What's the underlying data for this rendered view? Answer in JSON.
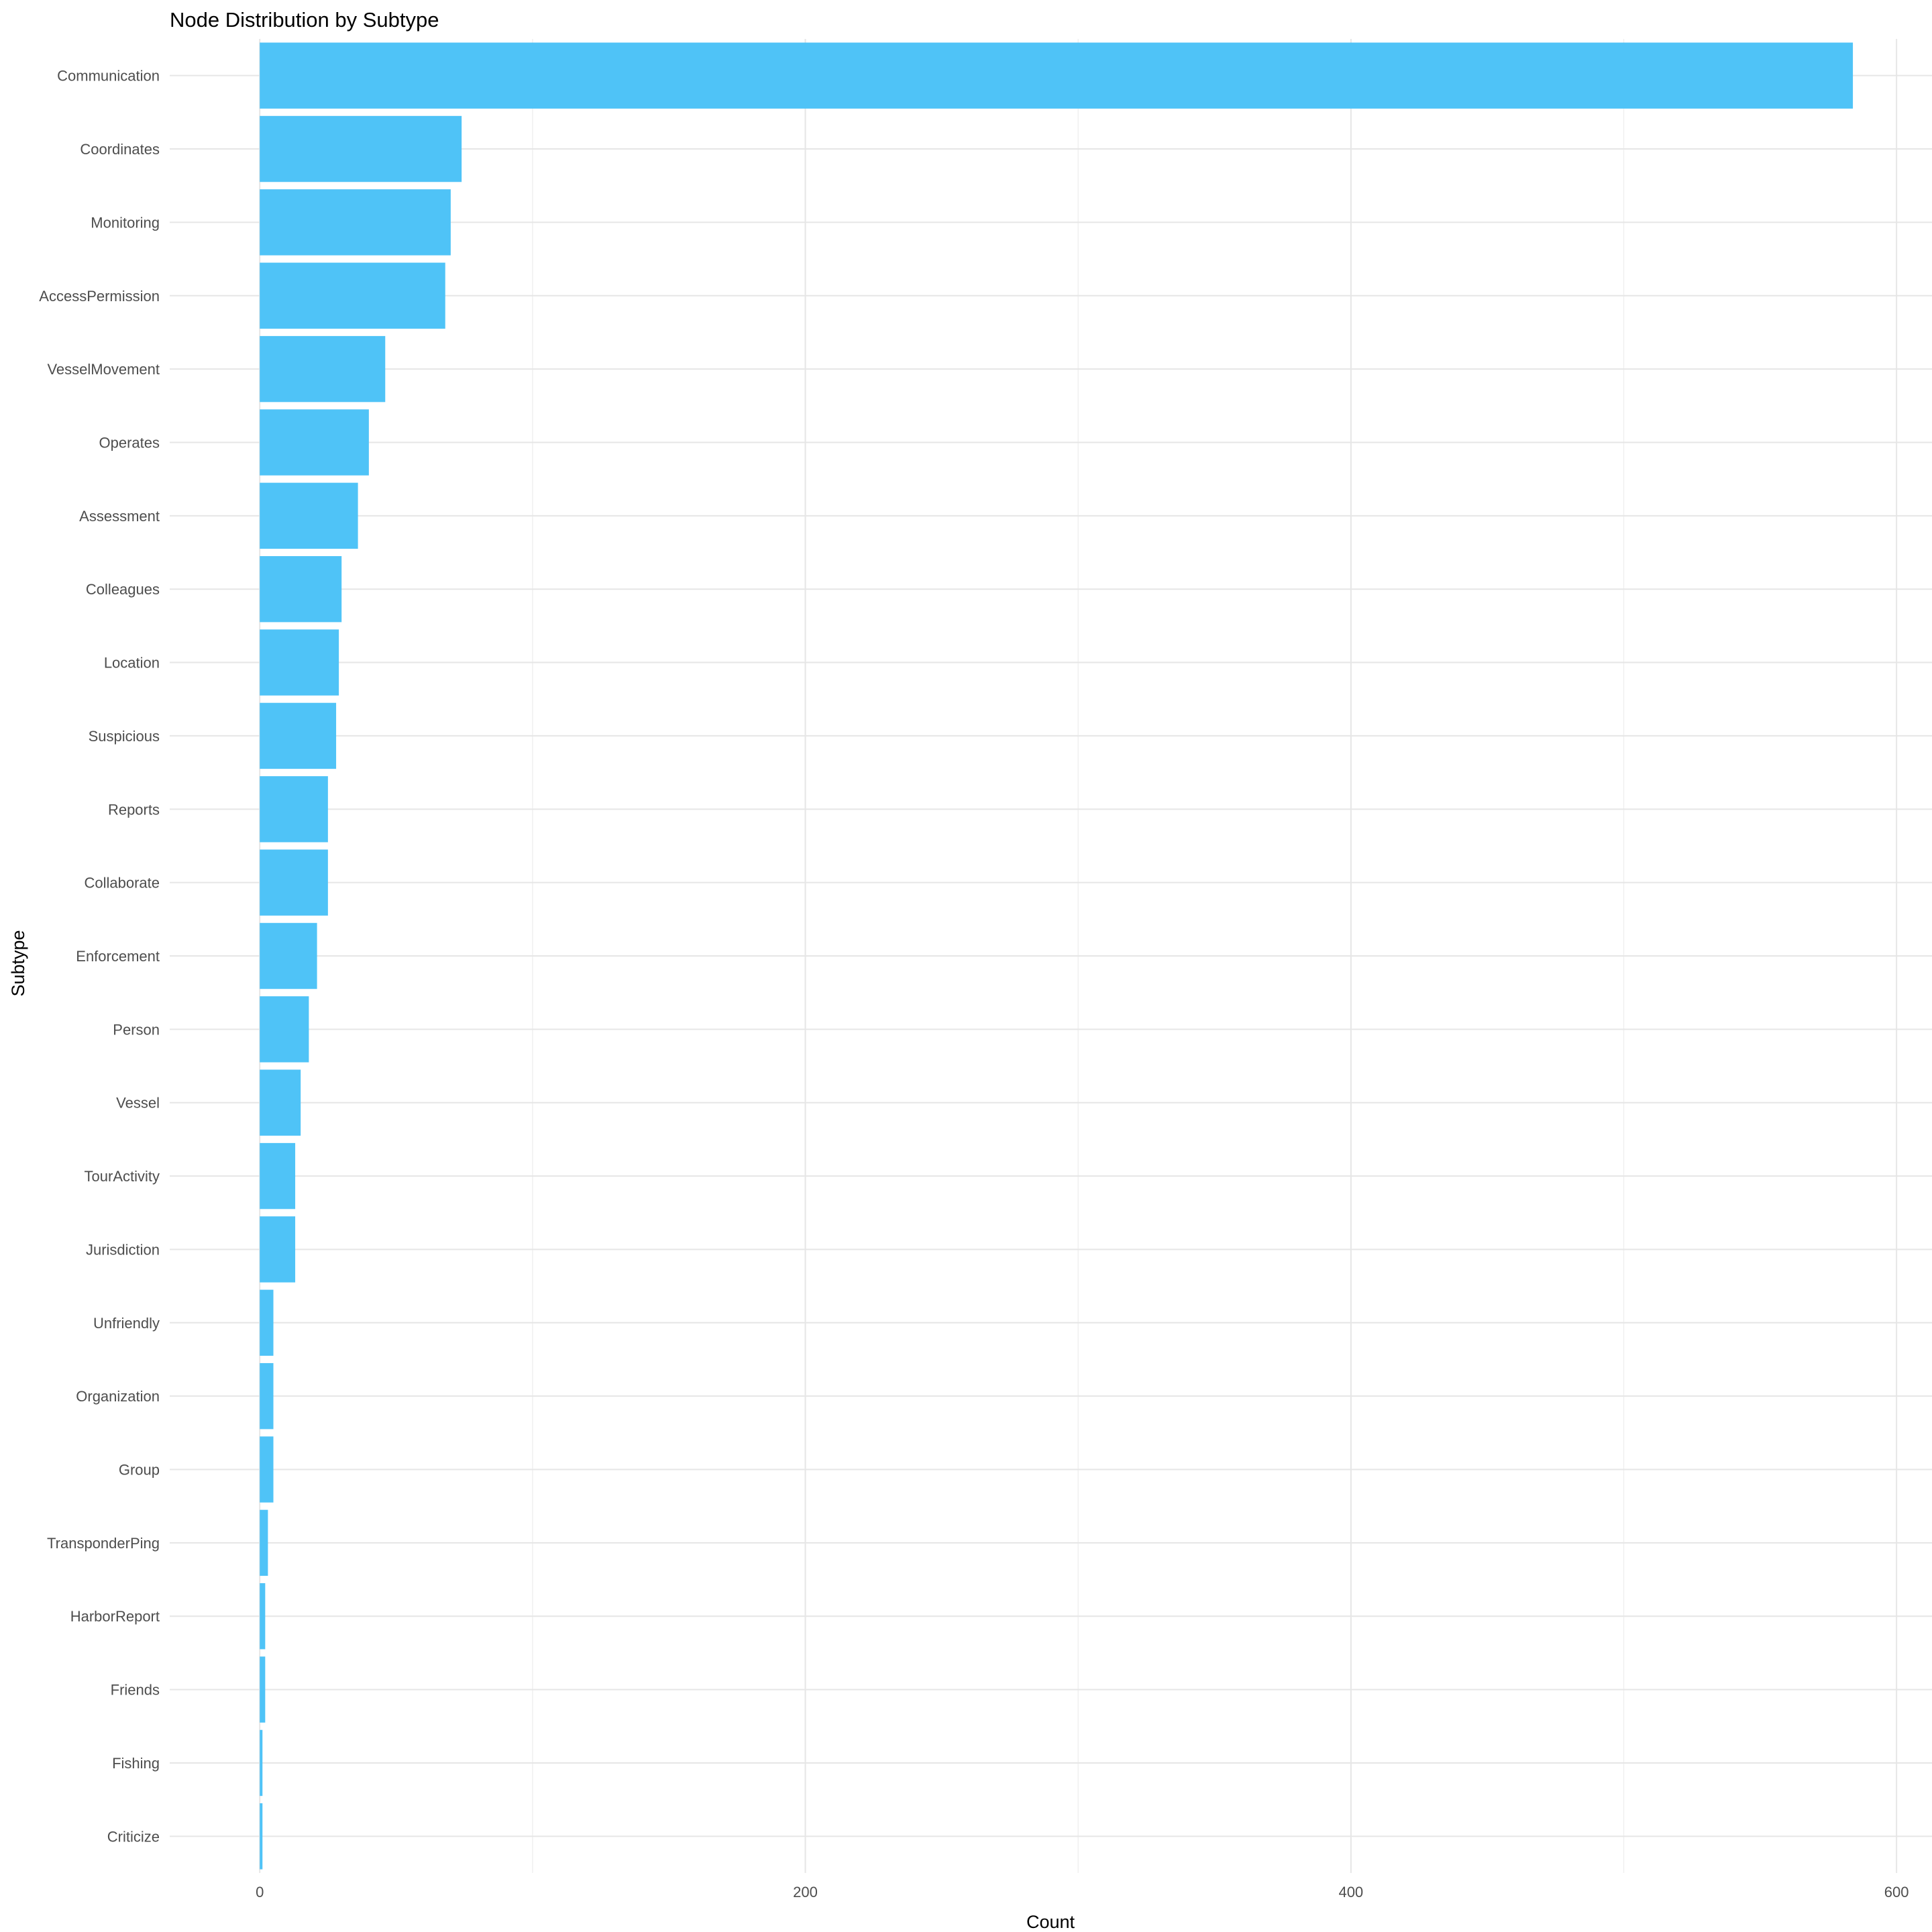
{
  "chart_data": {
    "type": "bar",
    "orientation": "horizontal",
    "title": "Node Distribution by Subtype",
    "xlabel": "Count",
    "ylabel": "Subtype",
    "xlim": [
      -33,
      613
    ],
    "xticks": [
      0,
      200,
      400,
      600
    ],
    "grid": true,
    "legend": "none",
    "bar_color": "#4FC3F7",
    "categories": [
      "Communication",
      "Coordinates",
      "Monitoring",
      "AccessPermission",
      "VesselMovement",
      "Operates",
      "Assessment",
      "Colleagues",
      "Location",
      "Suspicious",
      "Reports",
      "Collaborate",
      "Enforcement",
      "Person",
      "Vessel",
      "TourActivity",
      "Jurisdiction",
      "Unfriendly",
      "Organization",
      "Group",
      "TransponderPing",
      "HarborReport",
      "Friends",
      "Fishing",
      "Criticize"
    ],
    "values": [
      584,
      74,
      70,
      68,
      46,
      40,
      36,
      30,
      29,
      28,
      25,
      25,
      21,
      18,
      15,
      13,
      13,
      5,
      5,
      5,
      3,
      2,
      2,
      1,
      1
    ]
  }
}
